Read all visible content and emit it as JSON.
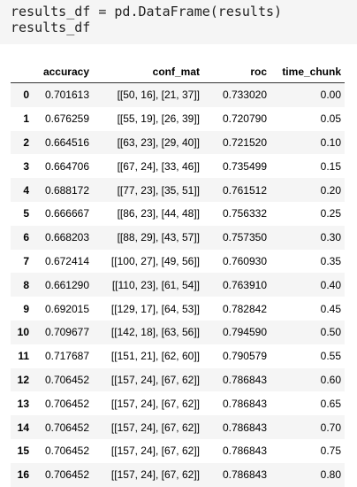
{
  "code_cell": {
    "lines": [
      "results_df = pd.DataFrame(results)",
      "results_df"
    ]
  },
  "table": {
    "columns": [
      "",
      "accuracy",
      "conf_mat",
      "roc",
      "time_chunk"
    ],
    "rows": [
      {
        "index": "0",
        "accuracy": "0.701613",
        "conf_mat": "[[50, 16], [21, 37]]",
        "roc": "0.733020",
        "time_chunk": "0.00"
      },
      {
        "index": "1",
        "accuracy": "0.676259",
        "conf_mat": "[[55, 19], [26, 39]]",
        "roc": "0.720790",
        "time_chunk": "0.05"
      },
      {
        "index": "2",
        "accuracy": "0.664516",
        "conf_mat": "[[63, 23], [29, 40]]",
        "roc": "0.721520",
        "time_chunk": "0.10"
      },
      {
        "index": "3",
        "accuracy": "0.664706",
        "conf_mat": "[[67, 24], [33, 46]]",
        "roc": "0.735499",
        "time_chunk": "0.15"
      },
      {
        "index": "4",
        "accuracy": "0.688172",
        "conf_mat": "[[77, 23], [35, 51]]",
        "roc": "0.761512",
        "time_chunk": "0.20"
      },
      {
        "index": "5",
        "accuracy": "0.666667",
        "conf_mat": "[[86, 23], [44, 48]]",
        "roc": "0.756332",
        "time_chunk": "0.25"
      },
      {
        "index": "6",
        "accuracy": "0.668203",
        "conf_mat": "[[88, 29], [43, 57]]",
        "roc": "0.757350",
        "time_chunk": "0.30"
      },
      {
        "index": "7",
        "accuracy": "0.672414",
        "conf_mat": "[[100, 27], [49, 56]]",
        "roc": "0.760930",
        "time_chunk": "0.35"
      },
      {
        "index": "8",
        "accuracy": "0.661290",
        "conf_mat": "[[110, 23], [61, 54]]",
        "roc": "0.763910",
        "time_chunk": "0.40"
      },
      {
        "index": "9",
        "accuracy": "0.692015",
        "conf_mat": "[[129, 17], [64, 53]]",
        "roc": "0.782842",
        "time_chunk": "0.45"
      },
      {
        "index": "10",
        "accuracy": "0.709677",
        "conf_mat": "[[142, 18], [63, 56]]",
        "roc": "0.794590",
        "time_chunk": "0.50"
      },
      {
        "index": "11",
        "accuracy": "0.717687",
        "conf_mat": "[[151, 21], [62, 60]]",
        "roc": "0.790579",
        "time_chunk": "0.55"
      },
      {
        "index": "12",
        "accuracy": "0.706452",
        "conf_mat": "[[157, 24], [67, 62]]",
        "roc": "0.786843",
        "time_chunk": "0.60"
      },
      {
        "index": "13",
        "accuracy": "0.706452",
        "conf_mat": "[[157, 24], [67, 62]]",
        "roc": "0.786843",
        "time_chunk": "0.65"
      },
      {
        "index": "14",
        "accuracy": "0.706452",
        "conf_mat": "[[157, 24], [67, 62]]",
        "roc": "0.786843",
        "time_chunk": "0.70"
      },
      {
        "index": "15",
        "accuracy": "0.706452",
        "conf_mat": "[[157, 24], [67, 62]]",
        "roc": "0.786843",
        "time_chunk": "0.75"
      },
      {
        "index": "16",
        "accuracy": "0.706452",
        "conf_mat": "[[157, 24], [67, 62]]",
        "roc": "0.786843",
        "time_chunk": "0.80"
      }
    ]
  }
}
